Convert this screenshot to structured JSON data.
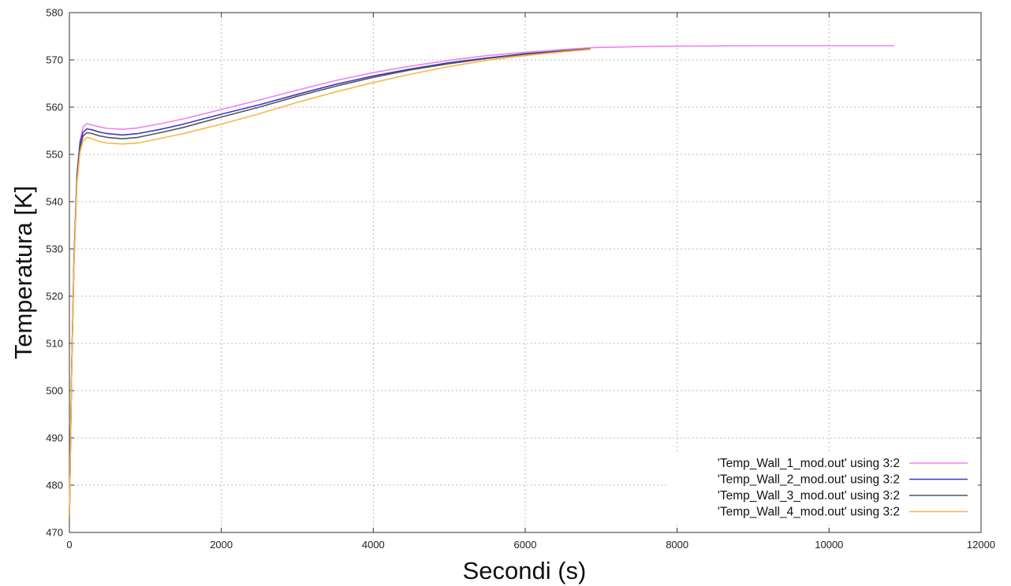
{
  "chart_data": {
    "type": "line",
    "title": "",
    "xlabel": "Secondi (s)",
    "ylabel": "Temperatura [K]",
    "xlim": [
      0,
      12000
    ],
    "ylim": [
      470,
      580
    ],
    "xticks": [
      0,
      2000,
      4000,
      6000,
      8000,
      10000,
      12000
    ],
    "yticks": [
      470,
      480,
      490,
      500,
      510,
      520,
      530,
      540,
      550,
      560,
      570,
      580
    ],
    "grid": true,
    "legend_position": "bottom-right",
    "series": [
      {
        "name": "'Temp_Wall_1_mod.out' using 3:2",
        "color": "#ee82ee",
        "x": [
          0,
          30,
          60,
          100,
          140,
          180,
          230,
          300,
          400,
          500,
          700,
          900,
          1200,
          1500,
          2000,
          2500,
          3000,
          3500,
          4000,
          4500,
          5000,
          5500,
          6000,
          6500,
          6900,
          7500,
          8000,
          9000,
          10000,
          10850
        ],
        "y": [
          473.5,
          505,
          528,
          546,
          553,
          555.8,
          556.5,
          556.2,
          555.8,
          555.5,
          555.3,
          555.6,
          556.5,
          557.5,
          559.5,
          561.5,
          563.6,
          565.6,
          567.3,
          568.7,
          569.9,
          570.9,
          571.6,
          572.2,
          572.6,
          572.8,
          572.9,
          573,
          573,
          573
        ]
      },
      {
        "name": "'Temp_Wall_2_mod.out' using 3:2",
        "color": "#3a3ac8",
        "x": [
          0,
          30,
          60,
          100,
          140,
          180,
          230,
          300,
          400,
          500,
          700,
          900,
          1200,
          1500,
          2000,
          2500,
          3000,
          3500,
          4000,
          4500,
          5000,
          5500,
          6000,
          6500,
          6850
        ],
        "y": [
          473.5,
          505,
          527.5,
          545.5,
          552.3,
          554.7,
          555.4,
          555.2,
          554.7,
          554.4,
          554.1,
          554.4,
          555.3,
          556.4,
          558.5,
          560.5,
          562.7,
          564.8,
          566.6,
          568.1,
          569.4,
          570.4,
          571.3,
          571.9,
          572.3
        ]
      },
      {
        "name": "'Temp_Wall_3_mod.out' using 3:2",
        "color": "#555555",
        "x": [
          0,
          30,
          60,
          100,
          140,
          180,
          230,
          300,
          400,
          500,
          700,
          900,
          1200,
          1500,
          2000,
          2500,
          3000,
          3500,
          4000,
          4500,
          5000,
          5500,
          6000,
          6500,
          6850
        ],
        "y": [
          473.5,
          504.8,
          527,
          545,
          551.5,
          553.9,
          554.6,
          554.4,
          553.9,
          553.6,
          553.3,
          553.6,
          554.6,
          555.7,
          557.9,
          560,
          562.3,
          564.4,
          566.3,
          567.9,
          569.2,
          570.3,
          571.2,
          571.9,
          572.3
        ]
      },
      {
        "name": "'Temp_Wall_4_mod.out' using 3:2",
        "color": "#f5b84a",
        "x": [
          0,
          30,
          60,
          100,
          140,
          180,
          230,
          300,
          400,
          500,
          700,
          900,
          1200,
          1500,
          2000,
          2500,
          3000,
          3500,
          4000,
          4500,
          5000,
          5500,
          6000,
          6500,
          6850
        ],
        "y": [
          473.5,
          504.5,
          526.5,
          544,
          550.5,
          552.8,
          553.6,
          553.3,
          552.7,
          552.4,
          552.2,
          552.4,
          553.4,
          554.4,
          556.4,
          558.6,
          561,
          563.2,
          565.2,
          567,
          568.6,
          569.9,
          570.9,
          571.7,
          572.2
        ]
      }
    ]
  }
}
